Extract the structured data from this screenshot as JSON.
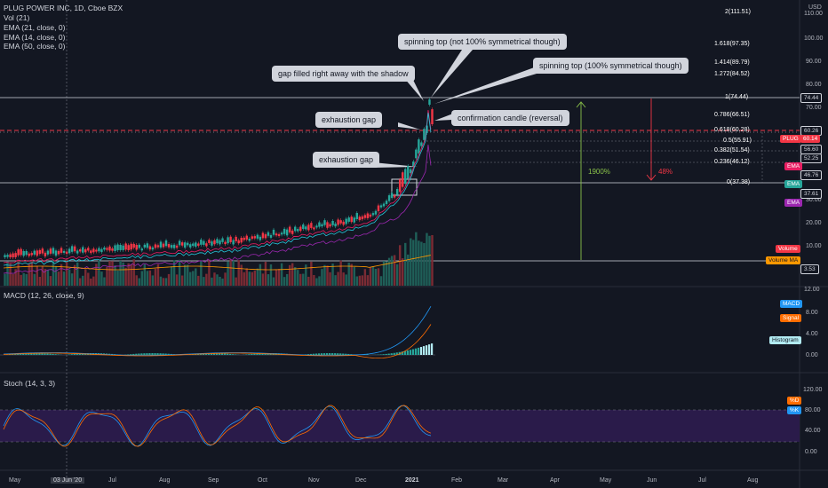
{
  "header": {
    "symbol_line": "PLUG POWER INC, 1D, Cboe BZX",
    "indicators": [
      "Vol (21)",
      "EMA (21, close, 0)",
      "EMA (14, close, 0)",
      "EMA (50, close, 0)"
    ],
    "currency": "USD"
  },
  "annotations": {
    "spinning_top_not": "spinning top (not 100% symmetrical though)",
    "spinning_top_100": "spinning top (100% symmetrical though)",
    "gap_filled": "gap filled right away with the shadow",
    "exhaustion_gap_1": "exhaustion gap",
    "confirmation": "confirmation candle (reversal)",
    "exhaustion_gap_2": "exhaustion gap",
    "rise_pct": "1900%",
    "drop_pct": "48%"
  },
  "fib_levels": [
    "2(111.51)",
    "1.618(97.35)",
    "1.414(89.79)",
    "1.272(84.52)",
    "1(74.44)",
    "0.786(66.51)",
    "0.618(60.28)",
    "0.5(55.91)",
    "0.382(51.54)",
    "0.236(46.12)",
    "0(37.38)"
  ],
  "price_axis": [
    "110.00",
    "100.00",
    "90.00",
    "80.00",
    "70.00",
    "30.00",
    "20.00",
    "10.00"
  ],
  "price_tags": [
    {
      "text": "74.44",
      "color": "#131722",
      "fg": "#d1d4dc"
    },
    {
      "text": "60.26",
      "color": "#131722",
      "fg": "#d1d4dc"
    },
    {
      "text": "PLUG",
      "color": "#f23645",
      "fg": "#ffffff"
    },
    {
      "text": "60.14",
      "color": "#f23645",
      "fg": "#ffffff"
    },
    {
      "text": "56.60",
      "color": "#131722",
      "fg": "#d1d4dc"
    },
    {
      "text": "52.25",
      "color": "#131722",
      "fg": "#d1d4dc"
    },
    {
      "text": "EMA",
      "color": "#e91e63",
      "fg": "#ffffff"
    },
    {
      "text": "46.76",
      "color": "#131722",
      "fg": "#d1d4dc"
    },
    {
      "text": "EMA",
      "color": "#26a69a",
      "fg": "#ffffff"
    },
    {
      "text": "37.61",
      "color": "#131722",
      "fg": "#d1d4dc"
    },
    {
      "text": "EMA",
      "color": "#9c27b0",
      "fg": "#ffffff"
    },
    {
      "text": "Volume",
      "color": "#f23645",
      "fg": "#ffffff"
    },
    {
      "text": "Volume MA",
      "color": "#ff9800",
      "fg": "#131722"
    },
    {
      "text": "3.53",
      "color": "#131722",
      "fg": "#d1d4dc"
    }
  ],
  "macd": {
    "label": "MACD (12, 26, close, 9)",
    "axis": [
      "12.00",
      "8.00",
      "4.00",
      "0.00"
    ],
    "tags": [
      {
        "text": "MACD",
        "color": "#2196f3"
      },
      {
        "text": "Signal",
        "color": "#ff6d00"
      },
      {
        "text": "Histogram",
        "color": "#b2ebf2"
      }
    ]
  },
  "stoch": {
    "label": "Stoch (14, 3, 3)",
    "axis": [
      "120.00",
      "80.00",
      "40.00",
      "0.00"
    ],
    "tags": [
      {
        "text": "%D",
        "color": "#ff6d00"
      },
      {
        "text": "%K",
        "color": "#2196f3"
      }
    ]
  },
  "time_axis": [
    "May",
    "03 Jun '20",
    "Jul",
    "Aug",
    "Sep",
    "Oct",
    "Nov",
    "Dec",
    "2021",
    "Feb",
    "Mar",
    "Apr",
    "May",
    "Jun",
    "Jul",
    "Aug"
  ],
  "colors": {
    "up": "#26a69a",
    "down": "#f23645",
    "ema21": "#e91e63",
    "ema14": "#26c6da",
    "ema50": "#9c27b0",
    "vol_ma": "#ff9800",
    "macd": "#2196f3",
    "signal": "#ff6d00",
    "stoch_bg": "#2a1b4a"
  }
}
